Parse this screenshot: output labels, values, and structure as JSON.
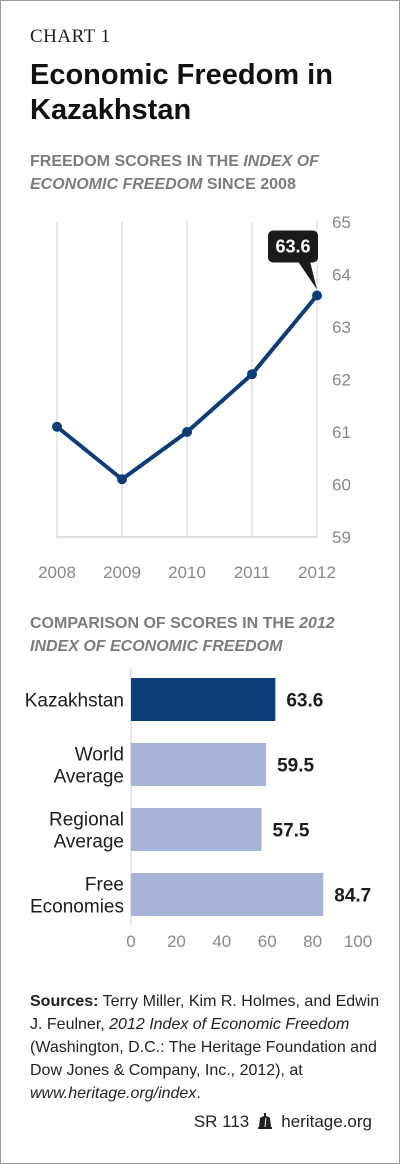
{
  "header": {
    "chart_label": "CHART 1",
    "title": "Economic Freedom in Kazakhstan"
  },
  "line_section": {
    "subtitle_part1": "FREEDOM SCORES IN THE ",
    "subtitle_italic": "INDEX OF ECONOMIC FREEDOM",
    "subtitle_part2": " SINCE 2008"
  },
  "bar_section": {
    "subtitle_part1": "COMPARISON OF SCORES IN THE ",
    "subtitle_italic": "2012 INDEX OF ECONOMIC FREEDOM"
  },
  "chart_data": [
    {
      "type": "line",
      "x": [
        "2008",
        "2009",
        "2010",
        "2011",
        "2012"
      ],
      "values": [
        61.1,
        60.1,
        61.0,
        62.1,
        63.6
      ],
      "ylim": [
        59,
        65
      ],
      "yticks": [
        "59",
        "60",
        "61",
        "62",
        "63",
        "64",
        "65"
      ],
      "y_axis_side": "right",
      "grid": "vertical",
      "callout": "63.6",
      "line_color": "#0b3d7a"
    },
    {
      "type": "bar",
      "orientation": "horizontal",
      "categories": [
        [
          "Kazakhstan"
        ],
        [
          "World",
          "Average"
        ],
        [
          "Regional",
          "Average"
        ],
        [
          "Free",
          "Economies"
        ]
      ],
      "values": [
        63.6,
        59.5,
        57.5,
        84.7
      ],
      "value_labels": [
        "63.6",
        "59.5",
        "57.5",
        "84.7"
      ],
      "xlim": [
        0,
        100
      ],
      "xticks": [
        "0",
        "20",
        "40",
        "60",
        "80",
        "100"
      ],
      "colors": [
        "#0b3d7a",
        "#a7b4d7",
        "#a7b4d7",
        "#a7b4d7"
      ]
    }
  ],
  "sources": {
    "label": "Sources:",
    "text1": " Terry Miller, Kim R. Holmes, and Edwin J. Feulner, ",
    "italic1": "2012 Index of Economic Freedom",
    "text2": " (Washington, D.C.: The Heritage Foundation and Dow Jones & Company, Inc., 2012), at ",
    "italic2": "www.heritage.org/index",
    "text3": "."
  },
  "footer": {
    "code": "SR 113",
    "site": "heritage.org",
    "logo_icon": "liberty-bell-icon"
  }
}
